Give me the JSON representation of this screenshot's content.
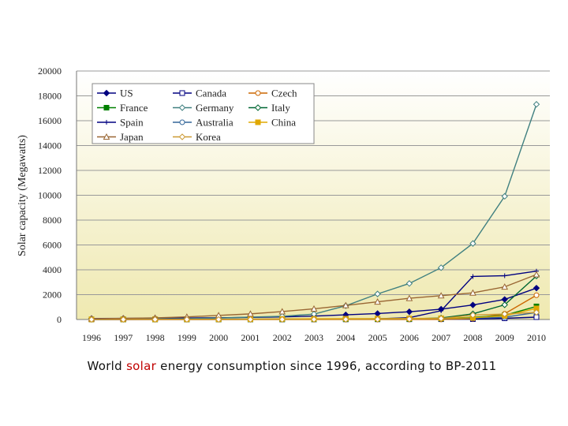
{
  "chart_data": {
    "type": "line",
    "y_label": "Solar capacity (Megawatts)",
    "categories": [
      "1996",
      "1997",
      "1998",
      "1999",
      "2000",
      "2001",
      "2002",
      "2003",
      "2004",
      "2005",
      "2006",
      "2007",
      "2008",
      "2009",
      "2010"
    ],
    "ylim": [
      0,
      20000
    ],
    "yticks": [
      0,
      2000,
      4000,
      6000,
      8000,
      10000,
      12000,
      14000,
      16000,
      18000,
      20000
    ],
    "grid": true,
    "legend": "top-left",
    "series": [
      {
        "name": "US",
        "color": "#000080",
        "marker": "diamond",
        "values": [
          77,
          88,
          100,
          117,
          139,
          168,
          212,
          275,
          376,
          479,
          624,
          831,
          1169,
          1616,
          2528
        ]
      },
      {
        "name": "Canada",
        "color": "#000080",
        "marker": "open-square",
        "values": [
          1,
          2,
          3,
          3,
          7,
          9,
          10,
          12,
          14,
          17,
          21,
          26,
          33,
          95,
          191
        ]
      },
      {
        "name": "Czech",
        "color": "#cc6600",
        "marker": "open-circle",
        "values": [
          0,
          0,
          0,
          0,
          0,
          0,
          0,
          0,
          0,
          0,
          1,
          4,
          65,
          465,
          1953
        ]
      },
      {
        "name": "France",
        "color": "#008000",
        "marker": "square",
        "values": [
          8,
          9,
          10,
          11,
          12,
          14,
          17,
          21,
          26,
          33,
          43,
          75,
          180,
          335,
          1054
        ]
      },
      {
        "name": "Germany",
        "color": "#408080",
        "marker": "open-diamond",
        "values": [
          28,
          42,
          54,
          70,
          114,
          195,
          260,
          435,
          1105,
          2056,
          2899,
          4170,
          6120,
          9914,
          17320
        ]
      },
      {
        "name": "Italy",
        "color": "#006633",
        "marker": "open-diamond",
        "values": [
          16,
          17,
          18,
          18,
          19,
          20,
          22,
          26,
          31,
          37,
          50,
          120,
          458,
          1181,
          3502
        ]
      },
      {
        "name": "Spain",
        "color": "#000080",
        "marker": "plus",
        "values": [
          7,
          8,
          9,
          9,
          12,
          15,
          21,
          27,
          37,
          58,
          148,
          705,
          3463,
          3523,
          3892
        ]
      },
      {
        "name": "Australia",
        "color": "#336699",
        "marker": "open-circle",
        "values": [
          16,
          19,
          23,
          26,
          29,
          34,
          39,
          46,
          52,
          61,
          70,
          83,
          105,
          188,
          571
        ]
      },
      {
        "name": "China",
        "color": "#e0a800",
        "marker": "square",
        "values": [
          11,
          13,
          15,
          16,
          19,
          24,
          45,
          55,
          65,
          70,
          80,
          100,
          140,
          300,
          893
        ]
      },
      {
        "name": "Japan",
        "color": "#996633",
        "marker": "open-triangle",
        "values": [
          60,
          91,
          133,
          209,
          330,
          453,
          637,
          860,
          1132,
          1422,
          1708,
          1919,
          2144,
          2627,
          3617
        ]
      },
      {
        "name": "Korea",
        "color": "#cc9933",
        "marker": "open-diamond",
        "values": [
          2,
          2,
          3,
          3,
          4,
          5,
          5,
          6,
          9,
          14,
          36,
          78,
          358,
          442,
          573
        ]
      }
    ]
  },
  "caption": {
    "before": "World",
    "highlight": "solar",
    "after": "energy consumption since 1996, according to BP-2011"
  }
}
